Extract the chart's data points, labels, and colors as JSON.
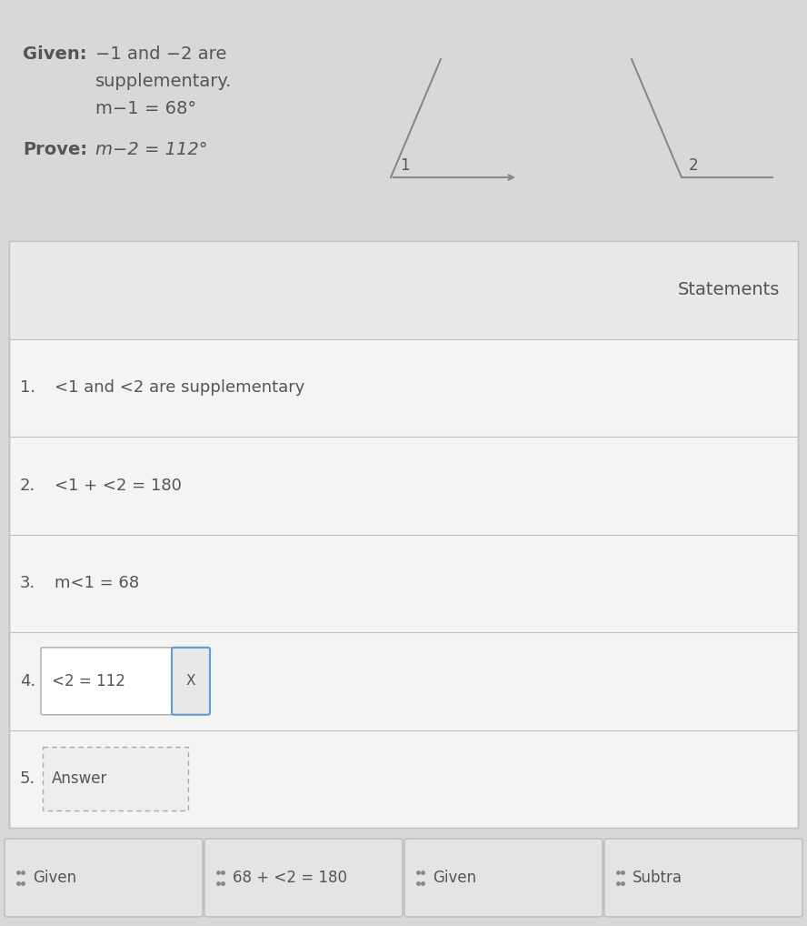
{
  "bg_color": "#d8d8d8",
  "table_bg": "#f0f0f0",
  "header_bg": "#e8e8e8",
  "text_color": "#555555",
  "line_color": "#c0c0c0",
  "button_bg": "#e0e0e0",
  "button_border": "#c0c0c0",
  "given_bold": "Given:",
  "given_line1": " −1 and −2 are",
  "given_line2": "supplementary.",
  "given_line3": "m−1 = 68°",
  "prove_bold": "Prove: ",
  "prove_rest": "m−2 = 112°",
  "header_text": "Statements",
  "row_nums": [
    "1.",
    "2.",
    "3.",
    "4.",
    "5."
  ],
  "row_texts": [
    "<1 and <2 are supplementary",
    "<1 + <2 = 180",
    "m<1 = 68",
    "<2 = 112",
    "Answer"
  ],
  "row4_box_text": "<2 = 112",
  "row4_close_text": "X",
  "row5_box_text": "Answer",
  "bottom_buttons": [
    ":  Given",
    ":  68 + <2 = 180",
    ":  Given",
    ":  Subtra"
  ],
  "diagram_color": "#888888"
}
